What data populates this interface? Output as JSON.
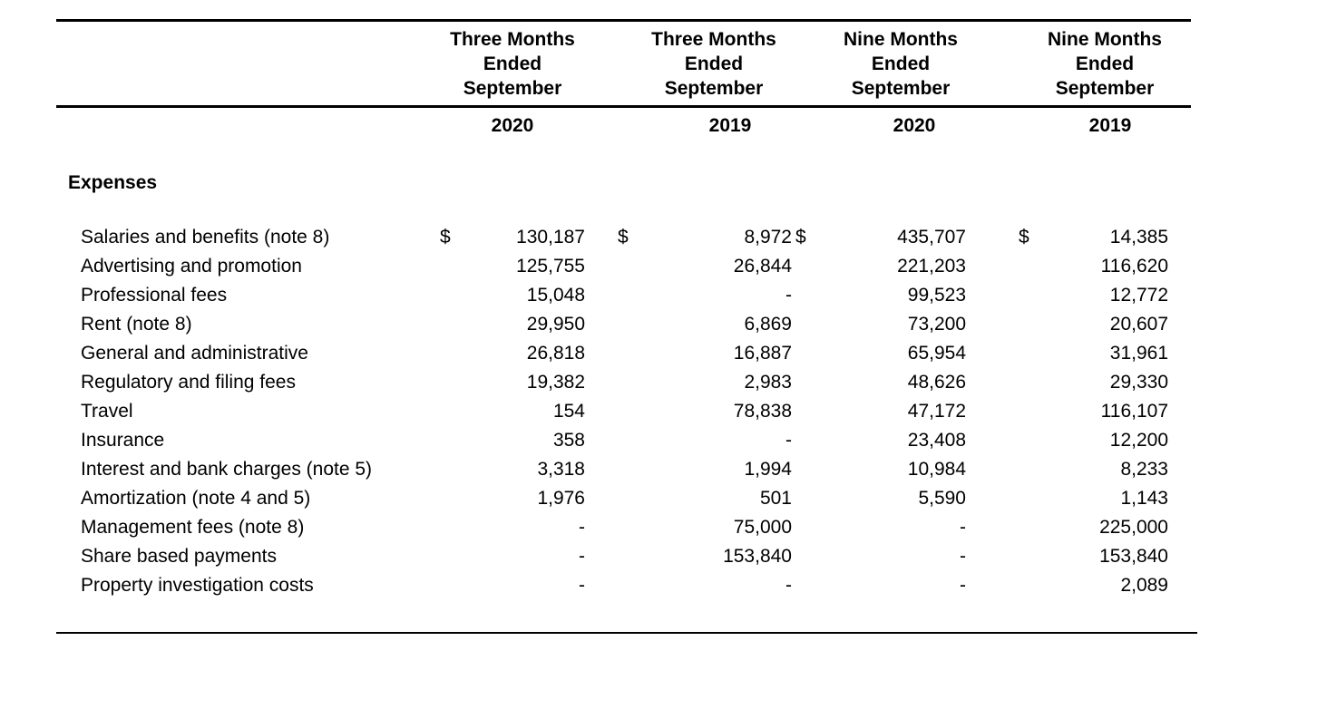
{
  "colors": {
    "text": "#000000",
    "background": "#ffffff",
    "rule": "#000000"
  },
  "table": {
    "currency_symbol": "$",
    "section_heading": "Expenses",
    "column_groups": [
      {
        "title": "Three Months Ended September",
        "year": "2020"
      },
      {
        "title": "Three Months Ended September",
        "year": "2019"
      },
      {
        "title": "Nine Months Ended September",
        "year": "2020"
      },
      {
        "title": "Nine Months Ended September",
        "year": "2019"
      }
    ],
    "rows": [
      {
        "label": "Salaries and benefits (note 8)",
        "values": [
          "130,187",
          "8,972",
          "435,707",
          "14,385"
        ]
      },
      {
        "label": "Advertising and promotion",
        "values": [
          "125,755",
          "26,844",
          "221,203",
          "116,620"
        ]
      },
      {
        "label": "Professional fees",
        "values": [
          "15,048",
          "-",
          "99,523",
          "12,772"
        ]
      },
      {
        "label": "Rent (note 8)",
        "values": [
          "29,950",
          "6,869",
          "73,200",
          "20,607"
        ]
      },
      {
        "label": "General and administrative",
        "values": [
          "26,818",
          "16,887",
          "65,954",
          "31,961"
        ]
      },
      {
        "label": "Regulatory and filing fees",
        "values": [
          "19,382",
          "2,983",
          "48,626",
          "29,330"
        ]
      },
      {
        "label": "Travel",
        "values": [
          "154",
          "78,838",
          "47,172",
          "116,107"
        ]
      },
      {
        "label": "Insurance",
        "values": [
          "358",
          "-",
          "23,408",
          "12,200"
        ]
      },
      {
        "label": "Interest and bank charges (note 5)",
        "values": [
          "3,318",
          "1,994",
          "10,984",
          "8,233"
        ]
      },
      {
        "label": "Amortization (note 4 and 5)",
        "values": [
          "1,976",
          "501",
          "5,590",
          "1,143"
        ]
      },
      {
        "label": "Management fees (note 8)",
        "values": [
          "-",
          "75,000",
          "-",
          "225,000"
        ]
      },
      {
        "label": "Share based payments",
        "values": [
          "-",
          "153,840",
          "-",
          "153,840"
        ]
      },
      {
        "label": "Property investigation costs",
        "values": [
          "-",
          "-",
          "-",
          "2,089"
        ]
      }
    ]
  }
}
